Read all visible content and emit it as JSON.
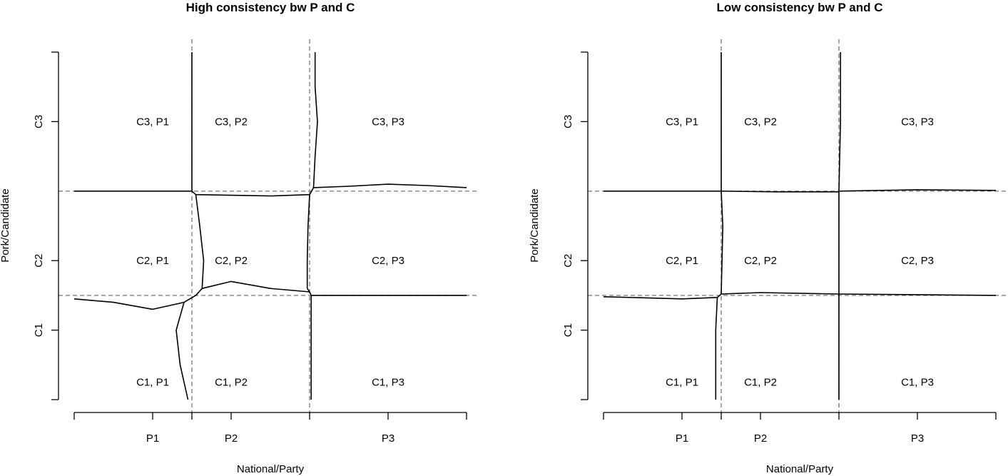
{
  "chart_data": [
    {
      "type": "region-map",
      "title": "High consistency bw P and C",
      "xlabel": "National/Party",
      "ylabel": "Pork/Candidate",
      "xlim": [
        0,
        5
      ],
      "ylim": [
        0,
        5
      ],
      "x_ticks": [
        {
          "value": 1.0,
          "label": "P1"
        },
        {
          "value": 2.0,
          "label": "P2"
        },
        {
          "value": 4.0,
          "label": "P3"
        }
      ],
      "y_ticks": [
        {
          "value": 1.0,
          "label": "C1"
        },
        {
          "value": 2.0,
          "label": "C2"
        },
        {
          "value": 4.0,
          "label": "C3"
        }
      ],
      "x_cutpoints": [
        1.5,
        3.0
      ],
      "y_cutpoints": [
        1.5,
        3.0
      ],
      "cells": [
        {
          "label": "C3, P1",
          "x": 1.0,
          "y": 4.0
        },
        {
          "label": "C3, P2",
          "x": 2.0,
          "y": 4.0
        },
        {
          "label": "C3, P3",
          "x": 4.0,
          "y": 4.0
        },
        {
          "label": "C2, P1",
          "x": 1.0,
          "y": 2.0
        },
        {
          "label": "C2, P2",
          "x": 2.0,
          "y": 2.0
        },
        {
          "label": "C2, P3",
          "x": 4.0,
          "y": 2.0
        },
        {
          "label": "C1, P1",
          "x": 1.0,
          "y": 0.25
        },
        {
          "label": "C1, P2",
          "x": 2.0,
          "y": 0.25
        },
        {
          "label": "C1, P3",
          "x": 4.0,
          "y": 0.25
        }
      ],
      "boundaries": [
        [
          [
            0,
            3.0
          ],
          [
            1.5,
            3.0
          ],
          [
            1.55,
            2.95
          ],
          [
            2.5,
            2.93
          ],
          [
            3.0,
            2.95
          ]
        ],
        [
          [
            1.5,
            5.0
          ],
          [
            1.5,
            3.0
          ]
        ],
        [
          [
            3.07,
            5.0
          ],
          [
            3.07,
            4.5
          ],
          [
            3.1,
            4.0
          ],
          [
            3.07,
            3.5
          ],
          [
            3.05,
            3.05
          ],
          [
            3.0,
            2.95
          ]
        ],
        [
          [
            3.05,
            3.05
          ],
          [
            3.5,
            3.07
          ],
          [
            4.0,
            3.1
          ],
          [
            4.5,
            3.08
          ],
          [
            5.0,
            3.05
          ]
        ],
        [
          [
            1.55,
            2.95
          ],
          [
            1.6,
            2.5
          ],
          [
            1.65,
            2.0
          ],
          [
            1.63,
            1.6
          ]
        ],
        [
          [
            1.63,
            1.6
          ],
          [
            2.0,
            1.7
          ],
          [
            2.5,
            1.6
          ],
          [
            3.0,
            1.55
          ]
        ],
        [
          [
            3.0,
            2.95
          ],
          [
            2.98,
            2.5
          ],
          [
            2.97,
            2.0
          ],
          [
            2.97,
            1.6
          ],
          [
            3.0,
            1.55
          ]
        ],
        [
          [
            3.0,
            1.55
          ],
          [
            3.02,
            1.5
          ],
          [
            3.5,
            1.5
          ],
          [
            5.0,
            1.5
          ]
        ],
        [
          [
            3.02,
            1.5
          ],
          [
            3.02,
            0
          ]
        ],
        [
          [
            0,
            1.45
          ],
          [
            0.5,
            1.4
          ],
          [
            1.0,
            1.3
          ],
          [
            1.4,
            1.4
          ],
          [
            1.55,
            1.5
          ],
          [
            1.63,
            1.6
          ]
        ],
        [
          [
            1.4,
            1.4
          ],
          [
            1.3,
            1.0
          ],
          [
            1.35,
            0.5
          ],
          [
            1.45,
            0.0
          ]
        ]
      ]
    },
    {
      "type": "region-map",
      "title": "Low consistency bw P and C",
      "xlabel": "National/Party",
      "ylabel": "Pork/Candidate",
      "xlim": [
        0,
        5
      ],
      "ylim": [
        0,
        5
      ],
      "x_ticks": [
        {
          "value": 1.0,
          "label": "P1"
        },
        {
          "value": 2.0,
          "label": "P2"
        },
        {
          "value": 4.0,
          "label": "P3"
        }
      ],
      "y_ticks": [
        {
          "value": 1.0,
          "label": "C1"
        },
        {
          "value": 2.0,
          "label": "C2"
        },
        {
          "value": 4.0,
          "label": "C3"
        }
      ],
      "x_cutpoints": [
        1.5,
        3.0
      ],
      "y_cutpoints": [
        1.5,
        3.0
      ],
      "cells": [
        {
          "label": "C3, P1",
          "x": 1.0,
          "y": 4.0
        },
        {
          "label": "C3, P2",
          "x": 2.0,
          "y": 4.0
        },
        {
          "label": "C3, P3",
          "x": 4.0,
          "y": 4.0
        },
        {
          "label": "C2, P1",
          "x": 1.0,
          "y": 2.0
        },
        {
          "label": "C2, P2",
          "x": 2.0,
          "y": 2.0
        },
        {
          "label": "C2, P3",
          "x": 4.0,
          "y": 2.0
        },
        {
          "label": "C1, P1",
          "x": 1.0,
          "y": 0.25
        },
        {
          "label": "C1, P2",
          "x": 2.0,
          "y": 0.25
        },
        {
          "label": "C1, P3",
          "x": 4.0,
          "y": 0.25
        }
      ],
      "boundaries": [
        [
          [
            0,
            3.0
          ],
          [
            1.5,
            3.0
          ],
          [
            2.2,
            2.99
          ],
          [
            3.0,
            2.99
          ]
        ],
        [
          [
            1.5,
            5.0
          ],
          [
            1.5,
            3.0
          ]
        ],
        [
          [
            3.0,
            2.99
          ],
          [
            3.0,
            1.52
          ]
        ],
        [
          [
            3.02,
            5.0
          ],
          [
            3.02,
            4.0
          ],
          [
            3.0,
            3.0
          ]
        ],
        [
          [
            3.0,
            3.0
          ],
          [
            4.0,
            3.02
          ],
          [
            5.0,
            3.01
          ]
        ],
        [
          [
            1.5,
            3.0
          ],
          [
            1.52,
            2.5
          ],
          [
            1.51,
            2.0
          ],
          [
            1.5,
            1.52
          ]
        ],
        [
          [
            1.5,
            1.52
          ],
          [
            2.0,
            1.54
          ],
          [
            3.0,
            1.52
          ]
        ],
        [
          [
            3.0,
            1.52
          ],
          [
            5.0,
            1.5
          ]
        ],
        [
          [
            3.0,
            1.52
          ],
          [
            3.0,
            0
          ]
        ],
        [
          [
            0,
            1.48
          ],
          [
            1.0,
            1.45
          ],
          [
            1.45,
            1.47
          ],
          [
            1.5,
            1.52
          ]
        ],
        [
          [
            1.45,
            1.47
          ],
          [
            1.43,
            1.0
          ],
          [
            1.43,
            0
          ]
        ]
      ]
    }
  ]
}
